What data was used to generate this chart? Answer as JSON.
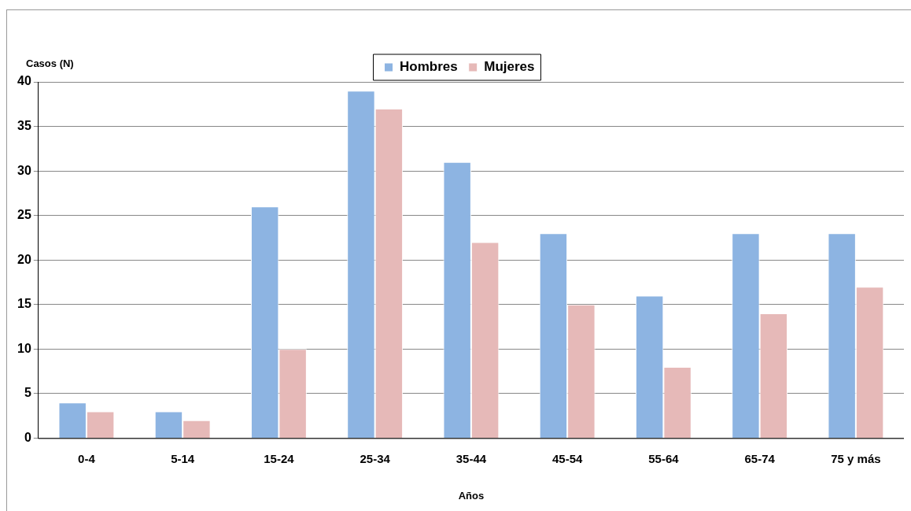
{
  "chart_data": {
    "type": "bar",
    "xlabel": "Años",
    "ylabel": "Casos (N)",
    "categories": [
      "0-4",
      "5-14",
      "15-24",
      "25-34",
      "35-44",
      "45-54",
      "55-64",
      "65-74",
      "75 y más"
    ],
    "series": [
      {
        "name": "Hombres",
        "color": "#8db4e2",
        "values": [
          4,
          3,
          26,
          39,
          31,
          23,
          16,
          23,
          23
        ]
      },
      {
        "name": "Mujeres",
        "color": "#e6b9b8",
        "values": [
          3,
          2,
          10,
          37,
          22,
          15,
          8,
          14,
          17
        ]
      }
    ],
    "ylim": [
      0,
      40
    ],
    "yticks": [
      0,
      5,
      10,
      15,
      20,
      25,
      30,
      35,
      40
    ],
    "grid": "y",
    "legend": "top"
  }
}
